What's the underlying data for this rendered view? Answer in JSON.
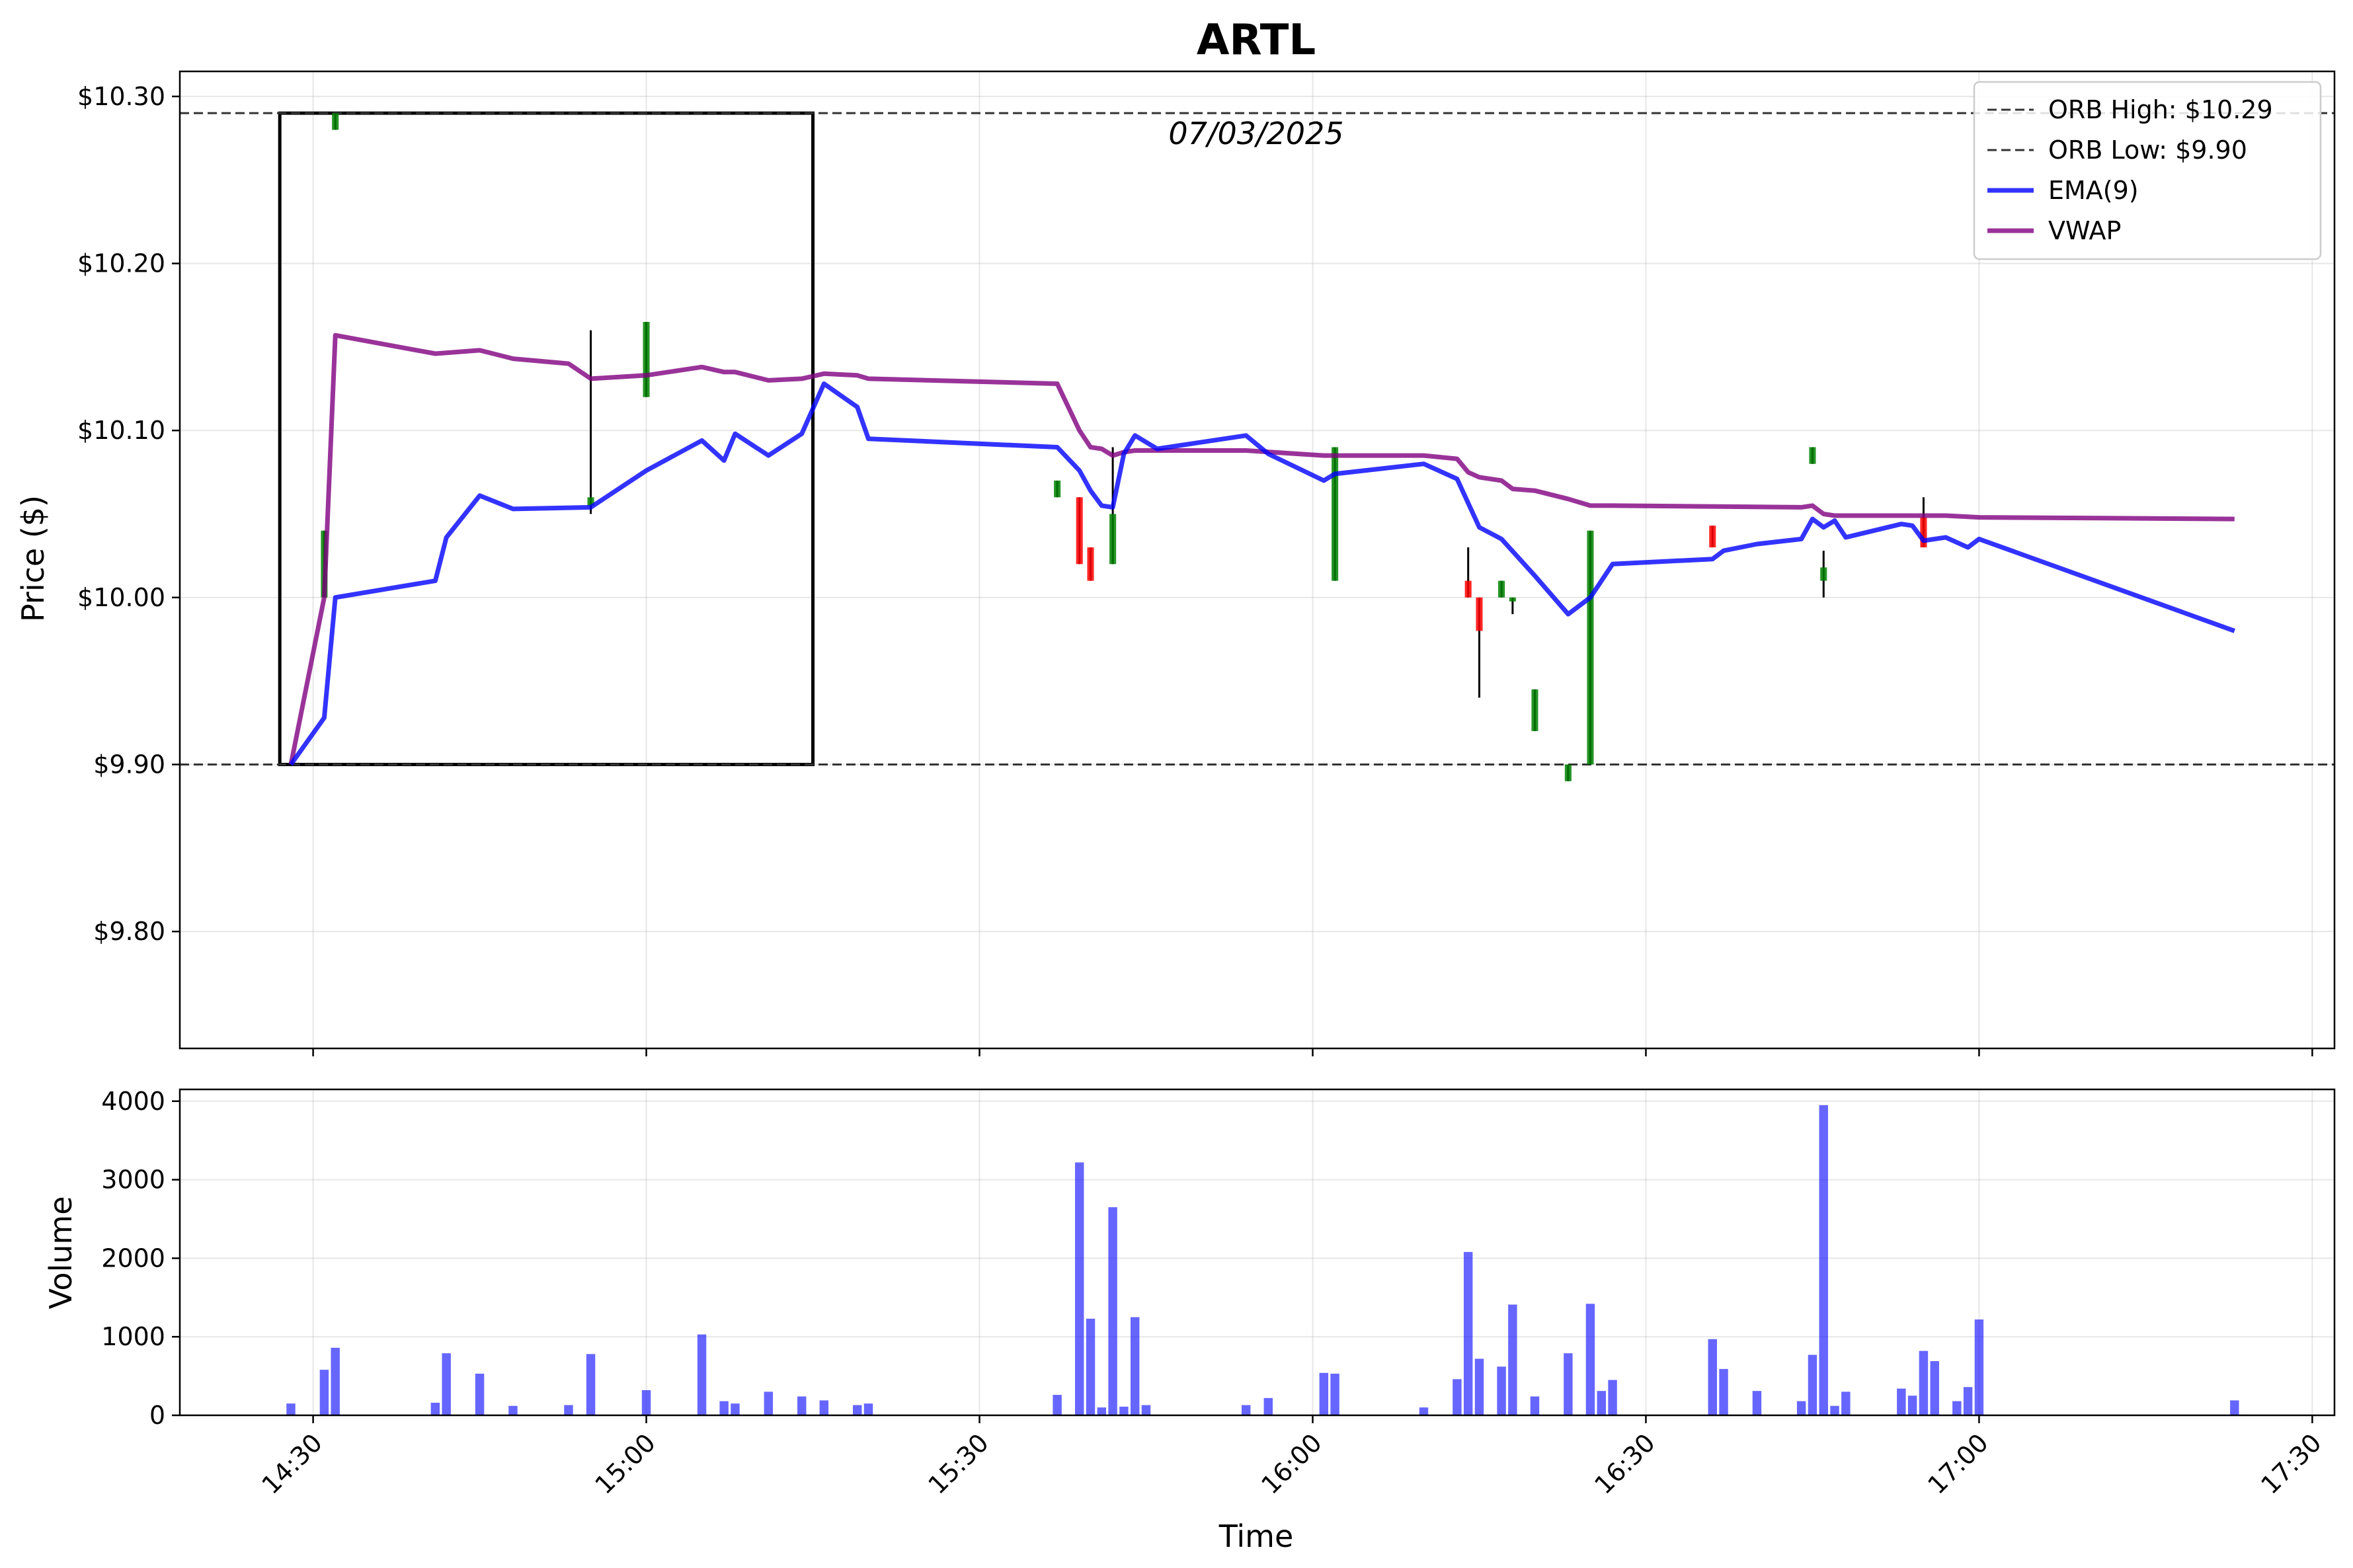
{
  "chart_data": {
    "type": "candlestick",
    "title": "ARTL",
    "date_label": "07/03/2025",
    "price_panel": {
      "ylabel": "Price ($)",
      "ylim": [
        9.73,
        10.315
      ],
      "y_ticks": [
        9.8,
        9.9,
        10.0,
        10.1,
        10.2,
        10.3
      ],
      "y_tick_labels": [
        "$9.80",
        "$9.90",
        "$10.00",
        "$10.10",
        "$10.20",
        "$10.30"
      ],
      "orb_high": 10.29,
      "orb_low": 9.9,
      "orb_box": {
        "start": "14:27",
        "end": "15:15",
        "high": 10.29,
        "low": 9.9
      },
      "candles": [
        {
          "t": "14:31",
          "o": 10.0,
          "h": 10.04,
          "l": 10.0,
          "c": 10.04
        },
        {
          "t": "14:32",
          "o": 10.28,
          "h": 10.29,
          "l": 10.28,
          "c": 10.29
        },
        {
          "t": "14:55",
          "o": 10.055,
          "h": 10.16,
          "l": 10.05,
          "c": 10.06
        },
        {
          "t": "15:00",
          "o": 10.12,
          "h": 10.165,
          "l": 10.12,
          "c": 10.165
        },
        {
          "t": "15:37",
          "o": 10.06,
          "h": 10.07,
          "l": 10.06,
          "c": 10.07
        },
        {
          "t": "15:39",
          "o": 10.06,
          "h": 10.06,
          "l": 10.02,
          "c": 10.02
        },
        {
          "t": "15:40",
          "o": 10.03,
          "h": 10.03,
          "l": 10.01,
          "c": 10.01
        },
        {
          "t": "15:42",
          "o": 10.02,
          "h": 10.09,
          "l": 10.02,
          "c": 10.05
        },
        {
          "t": "16:02",
          "o": 10.01,
          "h": 10.09,
          "l": 10.01,
          "c": 10.09
        },
        {
          "t": "16:14",
          "o": 10.01,
          "h": 10.03,
          "l": 10.0,
          "c": 10.0
        },
        {
          "t": "16:15",
          "o": 10.0,
          "h": 10.0,
          "l": 9.94,
          "c": 9.98
        },
        {
          "t": "16:17",
          "o": 10.0,
          "h": 10.01,
          "l": 10.0,
          "c": 10.01
        },
        {
          "t": "16:18",
          "o": 10.0,
          "h": 10.0,
          "l": 9.99,
          "c": 10.0
        },
        {
          "t": "16:20",
          "o": 9.92,
          "h": 9.945,
          "l": 9.92,
          "c": 9.945
        },
        {
          "t": "16:23",
          "o": 9.89,
          "h": 9.9,
          "l": 9.89,
          "c": 9.9
        },
        {
          "t": "16:25",
          "o": 9.9,
          "h": 10.04,
          "l": 9.9,
          "c": 10.04
        },
        {
          "t": "16:36",
          "o": 10.043,
          "h": 10.043,
          "l": 10.03,
          "c": 10.03
        },
        {
          "t": "16:45",
          "o": 10.08,
          "h": 10.09,
          "l": 10.08,
          "c": 10.09
        },
        {
          "t": "16:46",
          "o": 10.01,
          "h": 10.028,
          "l": 10.0,
          "c": 10.018
        },
        {
          "t": "16:55",
          "o": 10.048,
          "h": 10.06,
          "l": 10.03,
          "c": 10.03
        }
      ],
      "ema9": [
        [
          "14:28",
          9.9
        ],
        [
          "14:31",
          9.928
        ],
        [
          "14:32",
          10.0
        ],
        [
          "14:41",
          10.01
        ],
        [
          "14:42",
          10.036
        ],
        [
          "14:45",
          10.061
        ],
        [
          "14:48",
          10.053
        ],
        [
          "14:55",
          10.054
        ],
        [
          "15:00",
          10.076
        ],
        [
          "15:05",
          10.094
        ],
        [
          "15:07",
          10.082
        ],
        [
          "15:08",
          10.098
        ],
        [
          "15:11",
          10.085
        ],
        [
          "15:14",
          10.098
        ],
        [
          "15:16",
          10.128
        ],
        [
          "15:19",
          10.114
        ],
        [
          "15:20",
          10.095
        ],
        [
          "15:37",
          10.09
        ],
        [
          "15:39",
          10.076
        ],
        [
          "15:40",
          10.064
        ],
        [
          "15:41",
          10.055
        ],
        [
          "15:42",
          10.054
        ],
        [
          "15:43",
          10.086
        ],
        [
          "15:44",
          10.097
        ],
        [
          "15:46",
          10.089
        ],
        [
          "15:54",
          10.097
        ],
        [
          "15:56",
          10.086
        ],
        [
          "16:01",
          10.07
        ],
        [
          "16:02",
          10.074
        ],
        [
          "16:10",
          10.08
        ],
        [
          "16:13",
          10.071
        ],
        [
          "16:15",
          10.042
        ],
        [
          "16:17",
          10.035
        ],
        [
          "16:20",
          10.013
        ],
        [
          "16:23",
          9.99
        ],
        [
          "16:25",
          10.0
        ],
        [
          "16:26",
          10.01
        ],
        [
          "16:27",
          10.02
        ],
        [
          "16:36",
          10.023
        ],
        [
          "16:37",
          10.028
        ],
        [
          "16:40",
          10.032
        ],
        [
          "16:44",
          10.035
        ],
        [
          "16:45",
          10.047
        ],
        [
          "16:46",
          10.042
        ],
        [
          "16:47",
          10.046
        ],
        [
          "16:48",
          10.036
        ],
        [
          "16:53",
          10.044
        ],
        [
          "16:54",
          10.043
        ],
        [
          "16:55",
          10.034
        ],
        [
          "16:57",
          10.036
        ],
        [
          "16:59",
          10.03
        ],
        [
          "17:00",
          10.035
        ],
        [
          "17:23",
          9.98
        ]
      ],
      "vwap": [
        [
          "14:28",
          9.9
        ],
        [
          "14:31",
          10.0
        ],
        [
          "14:32",
          10.157
        ],
        [
          "14:41",
          10.146
        ],
        [
          "14:45",
          10.148
        ],
        [
          "14:48",
          10.143
        ],
        [
          "14:53",
          10.14
        ],
        [
          "14:55",
          10.131
        ],
        [
          "15:00",
          10.133
        ],
        [
          "15:05",
          10.138
        ],
        [
          "15:07",
          10.135
        ],
        [
          "15:08",
          10.135
        ],
        [
          "15:11",
          10.13
        ],
        [
          "15:14",
          10.131
        ],
        [
          "15:16",
          10.134
        ],
        [
          "15:19",
          10.133
        ],
        [
          "15:20",
          10.131
        ],
        [
          "15:37",
          10.128
        ],
        [
          "15:39",
          10.1
        ],
        [
          "15:40",
          10.09
        ],
        [
          "15:41",
          10.089
        ],
        [
          "15:42",
          10.085
        ],
        [
          "15:43",
          10.087
        ],
        [
          "15:44",
          10.088
        ],
        [
          "15:54",
          10.088
        ],
        [
          "16:01",
          10.085
        ],
        [
          "16:10",
          10.085
        ],
        [
          "16:13",
          10.083
        ],
        [
          "16:14",
          10.075
        ],
        [
          "16:15",
          10.072
        ],
        [
          "16:17",
          10.07
        ],
        [
          "16:18",
          10.065
        ],
        [
          "16:20",
          10.064
        ],
        [
          "16:23",
          10.059
        ],
        [
          "16:25",
          10.055
        ],
        [
          "16:27",
          10.055
        ],
        [
          "16:44",
          10.054
        ],
        [
          "16:45",
          10.055
        ],
        [
          "16:46",
          10.05
        ],
        [
          "16:47",
          10.049
        ],
        [
          "16:55",
          10.049
        ],
        [
          "16:57",
          10.049
        ],
        [
          "17:00",
          10.048
        ],
        [
          "17:23",
          10.047
        ]
      ]
    },
    "volume_panel": {
      "ylabel": "Volume",
      "ylim": [
        0,
        4150
      ],
      "y_ticks": [
        0,
        1000,
        2000,
        3000,
        4000
      ],
      "y_tick_labels": [
        "0",
        "1000",
        "2000",
        "3000",
        "4000"
      ],
      "bar_color": "#0000ff",
      "bars": [
        [
          "14:28",
          150
        ],
        [
          "14:31",
          580
        ],
        [
          "14:32",
          860
        ],
        [
          "14:41",
          160
        ],
        [
          "14:42",
          790
        ],
        [
          "14:45",
          530
        ],
        [
          "14:48",
          120
        ],
        [
          "14:53",
          130
        ],
        [
          "14:55",
          780
        ],
        [
          "15:00",
          320
        ],
        [
          "15:05",
          1030
        ],
        [
          "15:07",
          180
        ],
        [
          "15:08",
          150
        ],
        [
          "15:11",
          300
        ],
        [
          "15:14",
          240
        ],
        [
          "15:16",
          190
        ],
        [
          "15:19",
          130
        ],
        [
          "15:20",
          150
        ],
        [
          "15:37",
          260
        ],
        [
          "15:39",
          3220
        ],
        [
          "15:40",
          1230
        ],
        [
          "15:41",
          100
        ],
        [
          "15:42",
          2650
        ],
        [
          "15:43",
          110
        ],
        [
          "15:44",
          1250
        ],
        [
          "15:45",
          130
        ],
        [
          "15:54",
          130
        ],
        [
          "15:56",
          220
        ],
        [
          "16:01",
          540
        ],
        [
          "16:02",
          530
        ],
        [
          "16:10",
          100
        ],
        [
          "16:13",
          460
        ],
        [
          "16:14",
          2080
        ],
        [
          "16:15",
          720
        ],
        [
          "16:17",
          620
        ],
        [
          "16:18",
          1410
        ],
        [
          "16:20",
          240
        ],
        [
          "16:23",
          790
        ],
        [
          "16:25",
          1420
        ],
        [
          "16:26",
          310
        ],
        [
          "16:27",
          450
        ],
        [
          "16:36",
          970
        ],
        [
          "16:37",
          590
        ],
        [
          "16:40",
          310
        ],
        [
          "16:44",
          180
        ],
        [
          "16:45",
          770
        ],
        [
          "16:46",
          3950
        ],
        [
          "16:47",
          120
        ],
        [
          "16:48",
          300
        ],
        [
          "16:53",
          340
        ],
        [
          "16:54",
          250
        ],
        [
          "16:55",
          820
        ],
        [
          "16:56",
          690
        ],
        [
          "16:58",
          180
        ],
        [
          "16:59",
          360
        ],
        [
          "17:00",
          1220
        ],
        [
          "17:23",
          190
        ]
      ]
    },
    "xlabel": "Time",
    "x_ticks": [
      "14:30",
      "15:00",
      "15:30",
      "16:00",
      "16:30",
      "17:00",
      "17:30"
    ],
    "x_range": [
      "14:18",
      "17:32"
    ],
    "legend": {
      "placement": "top-right",
      "entries": [
        {
          "label": "ORB High: $10.29",
          "style": "dashed",
          "color": "#333333"
        },
        {
          "label": "ORB Low: $9.90",
          "style": "dashed",
          "color": "#333333"
        },
        {
          "label": "EMA(9)",
          "style": "solid",
          "color": "#0000ff"
        },
        {
          "label": "VWAP",
          "style": "solid",
          "color": "#800080"
        }
      ]
    },
    "colors": {
      "up": "#008000",
      "down": "#ff0000",
      "ema": "#0000ff",
      "vwap": "#800080",
      "orb": "#333333"
    },
    "grid": true
  }
}
